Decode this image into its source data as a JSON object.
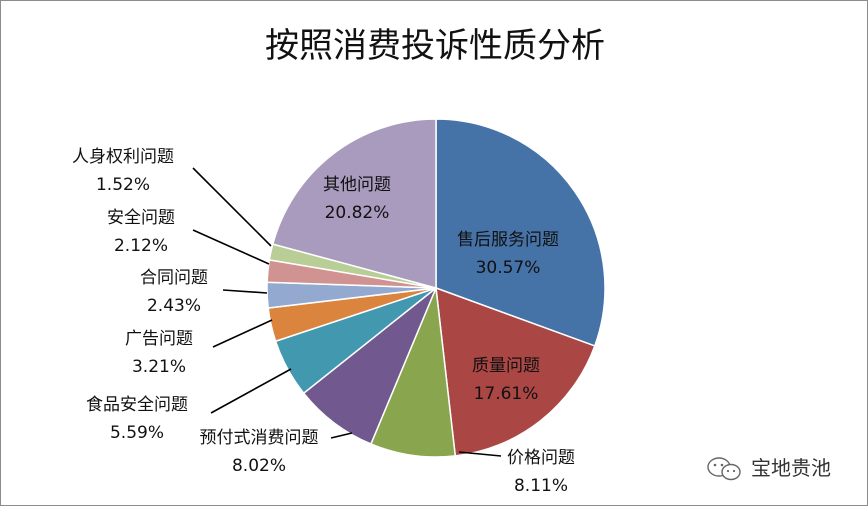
{
  "chart_data": {
    "type": "pie",
    "title": "按照消费投诉性质分析",
    "slices": [
      {
        "name": "售后服务问题",
        "value": 30.57,
        "label": "30.57%",
        "color": "#4572A7"
      },
      {
        "name": "质量问题",
        "value": 17.61,
        "label": "17.61%",
        "color": "#AA4643"
      },
      {
        "name": "价格问题",
        "value": 8.11,
        "label": "8.11%",
        "color": "#89A54E"
      },
      {
        "name": "预付式消费问题",
        "value": 8.02,
        "label": "8.02%",
        "color": "#71588F"
      },
      {
        "name": "食品安全问题",
        "value": 5.59,
        "label": "5.59%",
        "color": "#4198AF"
      },
      {
        "name": "广告问题",
        "value": 3.21,
        "label": "3.21%",
        "color": "#DB843D"
      },
      {
        "name": "合同问题",
        "value": 2.43,
        "label": "2.43%",
        "color": "#93A9CF"
      },
      {
        "name": "安全问题",
        "value": 2.12,
        "label": "2.12%",
        "color": "#D19392"
      },
      {
        "name": "人身权利问题",
        "value": 1.52,
        "label": "1.52%",
        "color": "#B9CD96"
      },
      {
        "name": "其他问题",
        "value": 20.82,
        "label": "20.82%",
        "color": "#A99BBD"
      }
    ]
  },
  "watermark": {
    "text": "宝地贵池",
    "icon": "wechat-icon"
  }
}
